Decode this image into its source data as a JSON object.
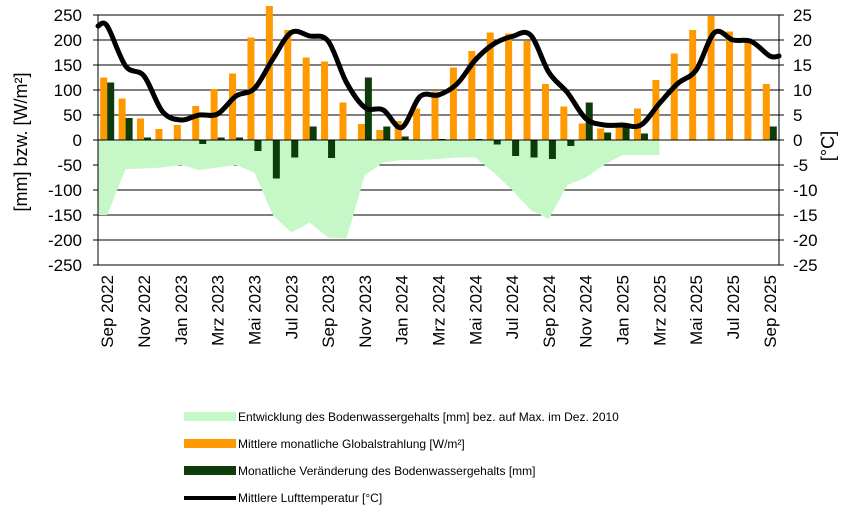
{
  "chart_data": {
    "type": "bar",
    "months": [
      "Sep 2022",
      "Okt 2022",
      "Nov 2022",
      "Dez 2022",
      "Jan 2023",
      "Feb 2023",
      "Mrz 2023",
      "Apr 2023",
      "Mai 2023",
      "Jun 2023",
      "Jul 2023",
      "Aug 2023",
      "Sep 2023",
      "Okt 2023",
      "Nov 2023",
      "Dez 2023",
      "Jan 2024",
      "Feb 2024",
      "Mrz 2024",
      "Apr 2024",
      "Mai 2024",
      "Jun 2024",
      "Jul 2024",
      "Aug 2024",
      "Sep 2024",
      "Okt 2024",
      "Nov 2024",
      "Dez 2024",
      "Jan 2025",
      "Feb 2025",
      "Mrz 2025",
      "Apr 2025",
      "Mai 2025",
      "Jun 2025",
      "Jul 2025",
      "Aug 2025",
      "Sep 2025"
    ],
    "x_tick_labels": [
      "Sep 2022",
      "Nov 2022",
      "Jan 2023",
      "Mrz 2023",
      "Mai 2023",
      "Jul 2023",
      "Sep 2023",
      "Nov 2023",
      "Jan 2024",
      "Mrz 2024",
      "Mai 2024",
      "Jul 2024",
      "Sep 2024",
      "Nov 2024",
      "Jan 2025",
      "Mrz 2025",
      "Mai 2025",
      "Jul 2025",
      "Sep 2025"
    ],
    "y_left": {
      "label": "[mm] bzw. [W/m²]",
      "min": -250,
      "max": 250,
      "step": 50
    },
    "y_right": {
      "label": "[°C]",
      "min": -25,
      "max": 25,
      "step": 5
    },
    "series": [
      {
        "name": "Entwicklung des Bodenwassergehalts [mm] bez. auf Max. im Dez. 2010",
        "type": "area",
        "axis": "left",
        "color": "#c6f7c6",
        "values": [
          -150,
          -58,
          -57,
          -55,
          -50,
          -60,
          -55,
          -50,
          -65,
          -150,
          -185,
          -165,
          -195,
          -197,
          -70,
          -45,
          -40,
          -40,
          -38,
          -35,
          -35,
          -65,
          -100,
          -140,
          -158,
          -90,
          -75,
          -50,
          -30,
          -30,
          -30
        ]
      },
      {
        "name": "Mittlere monatliche Globalstrahlung [W/m²]",
        "type": "bar",
        "axis": "left",
        "color": "#ff9900",
        "values": [
          125,
          83,
          43,
          22,
          30,
          68,
          102,
          133,
          205,
          268,
          220,
          165,
          157,
          75,
          32,
          20,
          38,
          63,
          97,
          145,
          178,
          215,
          213,
          198,
          112,
          67,
          33,
          23,
          33,
          63,
          120,
          173,
          220,
          248,
          217,
          197,
          112
        ]
      },
      {
        "name": "Monatliche Veränderung des Bodenwassergehalts [mm]",
        "type": "bar",
        "axis": "left",
        "color": "#0d3b09",
        "values": [
          115,
          44,
          5,
          0,
          0,
          -8,
          5,
          5,
          -22,
          -77,
          -35,
          27,
          -36,
          0,
          125,
          27,
          7,
          0,
          2,
          0,
          2,
          -9,
          -32,
          -35,
          -38,
          -12,
          75,
          15,
          27,
          13,
          0,
          0,
          0,
          0,
          0,
          0,
          27
        ]
      },
      {
        "name": "Mittlere Lufttemperatur [°C]",
        "type": "line",
        "axis": "right",
        "color": "#000000",
        "values": [
          22.8,
          14.8,
          12.8,
          5.7,
          4.0,
          5.0,
          5.2,
          8.8,
          10.3,
          16.2,
          21.5,
          20.8,
          19.8,
          11.5,
          6.5,
          6.0,
          2.5,
          8.7,
          9.0,
          11.2,
          16.0,
          19.2,
          20.7,
          21.0,
          13.5,
          9.5,
          4.3,
          3.0,
          3.0,
          3.0,
          7.3,
          11.3,
          14.0,
          21.5,
          20.0,
          19.7,
          16.8
        ]
      }
    ]
  }
}
